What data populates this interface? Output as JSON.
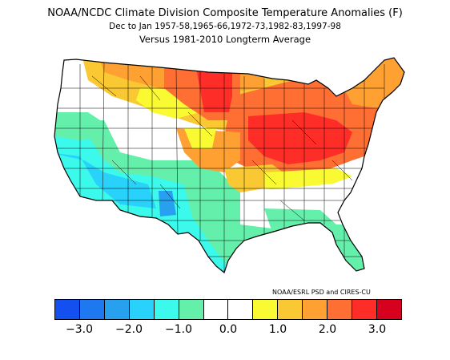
{
  "title": {
    "line1": "NOAA/NCDC Climate Division Composite Temperature Anomalies (F)",
    "line2": "Dec to Jan  1957-58,1965-66,1972-73,1982-83,1997-98",
    "line3": "Versus 1981-2010 Longterm Average"
  },
  "credit": "NOAA/ESRL PSD and CIRES-CU",
  "colorbar": {
    "colors": [
      "#1450f0",
      "#1e78f0",
      "#28a0f0",
      "#28d2fa",
      "#3cfaeb",
      "#64f0aa",
      "#ffffff",
      "#ffffff",
      "#fafa32",
      "#fac832",
      "#ffa032",
      "#ff6e32",
      "#ff2d28",
      "#d7001e"
    ],
    "ticks": [
      {
        "label": "−3.0",
        "index": 1
      },
      {
        "label": "−2.0",
        "index": 3
      },
      {
        "label": "−1.0",
        "index": 5
      },
      {
        "label": "0.0",
        "index": 7
      },
      {
        "label": "1.0",
        "index": 9
      },
      {
        "label": "2.0",
        "index": 11
      },
      {
        "label": "3.0",
        "index": 13
      }
    ]
  }
}
